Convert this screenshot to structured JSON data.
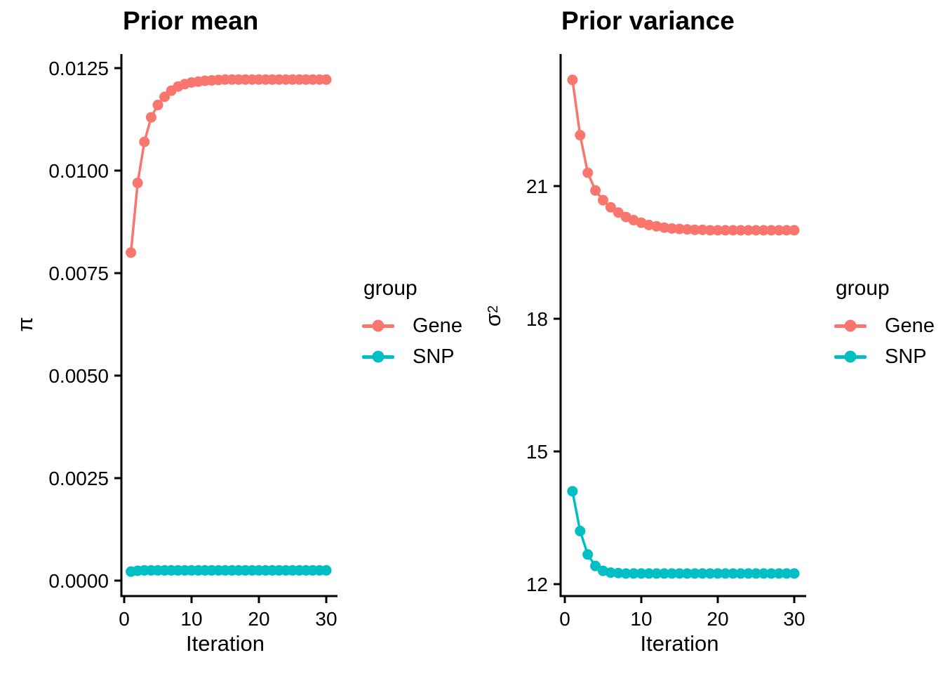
{
  "figure": {
    "background": "#FFFFFF",
    "colors": {
      "gene": "#F8766D",
      "snp": "#00BFC4"
    },
    "legend": {
      "title": "group",
      "position": "right",
      "items": [
        {
          "label": "Gene",
          "color_key": "gene"
        },
        {
          "label": "SNP",
          "color_key": "snp"
        }
      ]
    }
  },
  "chart_data": [
    {
      "type": "line",
      "title": "Prior mean",
      "xlabel": "Iteration",
      "ylabel": "π",
      "ylabel_base": "π",
      "ylabel_sup": "",
      "xlim": [
        0,
        31
      ],
      "ylim": [
        -0.0004,
        0.0129
      ],
      "grid": false,
      "legend_position": "right",
      "xticks": [
        0,
        10,
        20,
        30
      ],
      "yticks": [
        0,
        0.0025,
        0.005,
        0.0075,
        0.01,
        0.0125
      ],
      "ytick_labels": [
        "0.0000",
        "0.0025",
        "0.0050",
        "0.0075",
        "0.0100",
        "0.0125"
      ],
      "x": [
        1,
        2,
        3,
        4,
        5,
        6,
        7,
        8,
        9,
        10,
        11,
        12,
        13,
        14,
        15,
        16,
        17,
        18,
        19,
        20,
        21,
        22,
        23,
        24,
        25,
        26,
        27,
        28,
        29,
        30
      ],
      "series": [
        {
          "name": "Gene",
          "color_key": "gene",
          "values": [
            0.008,
            0.0097,
            0.0107,
            0.0113,
            0.0116,
            0.0118,
            0.01195,
            0.01205,
            0.01211,
            0.01215,
            0.01217,
            0.01219,
            0.0122,
            0.01221,
            0.01222,
            0.01222,
            0.01222,
            0.01222,
            0.01222,
            0.01222,
            0.01222,
            0.01222,
            0.01222,
            0.01222,
            0.01222,
            0.01222,
            0.01222,
            0.01222,
            0.01222,
            0.01222
          ]
        },
        {
          "name": "SNP",
          "color_key": "snp",
          "values": [
            0.00022,
            0.00024,
            0.00025,
            0.00025,
            0.00025,
            0.00025,
            0.00025,
            0.00025,
            0.00025,
            0.00025,
            0.00025,
            0.00025,
            0.00025,
            0.00025,
            0.00025,
            0.00025,
            0.00025,
            0.00025,
            0.00025,
            0.00025,
            0.00025,
            0.00025,
            0.00025,
            0.00025,
            0.00025,
            0.00025,
            0.00025,
            0.00025,
            0.00025,
            0.00025
          ]
        }
      ]
    },
    {
      "type": "line",
      "title": "Prior variance",
      "xlabel": "Iteration",
      "ylabel": "σ²",
      "ylabel_base": "σ",
      "ylabel_sup": "2",
      "xlim": [
        0,
        31
      ],
      "ylim": [
        11.7,
        24.0
      ],
      "grid": false,
      "legend_position": "right",
      "xticks": [
        0,
        10,
        20,
        30
      ],
      "yticks": [
        12,
        15,
        18,
        21
      ],
      "ytick_labels": [
        "12",
        "15",
        "18",
        "21"
      ],
      "x": [
        1,
        2,
        3,
        4,
        5,
        6,
        7,
        8,
        9,
        10,
        11,
        12,
        13,
        14,
        15,
        16,
        17,
        18,
        19,
        20,
        21,
        22,
        23,
        24,
        25,
        26,
        27,
        28,
        29,
        30
      ],
      "series": [
        {
          "name": "Gene",
          "color_key": "gene",
          "values": [
            23.4,
            22.15,
            21.3,
            20.9,
            20.68,
            20.52,
            20.4,
            20.3,
            20.23,
            20.17,
            20.12,
            20.09,
            20.06,
            20.04,
            20.03,
            20.02,
            20.01,
            20.01,
            20.0,
            20.0,
            20.0,
            20.0,
            20.0,
            20.0,
            20.0,
            20.0,
            20.0,
            20.0,
            20.0,
            20.0
          ]
        },
        {
          "name": "SNP",
          "color_key": "snp",
          "values": [
            14.1,
            13.2,
            12.67,
            12.41,
            12.3,
            12.26,
            12.25,
            12.24,
            12.24,
            12.24,
            12.24,
            12.24,
            12.24,
            12.24,
            12.24,
            12.24,
            12.24,
            12.24,
            12.24,
            12.24,
            12.24,
            12.24,
            12.24,
            12.24,
            12.24,
            12.24,
            12.24,
            12.24,
            12.24,
            12.24
          ]
        }
      ]
    }
  ]
}
